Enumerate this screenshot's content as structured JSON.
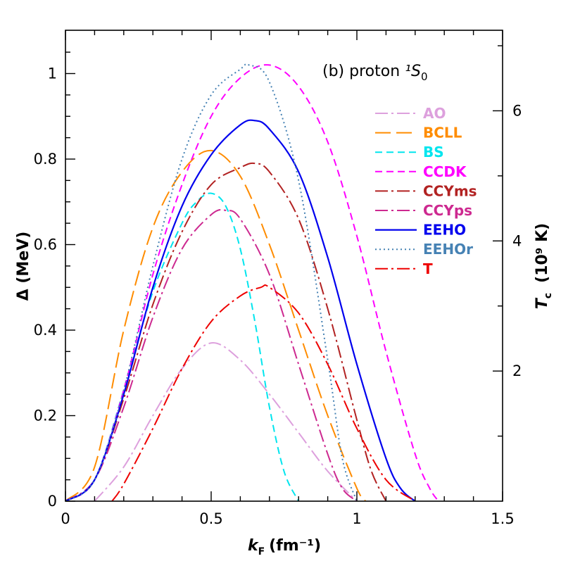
{
  "chart_data": {
    "type": "line",
    "panel_label": "(b) proton ",
    "panel_state": "¹S",
    "panel_state_sub": "0",
    "xlabel": "k",
    "xlabel_sub": "F",
    "xlabel_unit": "(fm⁻¹)",
    "ylabel": "Δ (MeV)",
    "y2label": "T",
    "y2label_sub": "c",
    "y2label_unit": "(10⁹ K)",
    "xlim": [
      0,
      1.5
    ],
    "ylim": [
      0,
      1.0
    ],
    "xticks": [
      "0",
      "0.5",
      "1",
      "1.5"
    ],
    "yticks": [
      "0",
      "0.2",
      "0.4",
      "0.6",
      "0.8",
      "1"
    ],
    "y2ticks": [
      "2",
      "4",
      "6"
    ],
    "y2tick_values_MeV": [
      0.3043,
      0.6086,
      0.9129
    ],
    "legend_position": "top-right",
    "series": [
      {
        "name": "AO",
        "color": "#dda0dd",
        "dash": "dashdot",
        "x": [
          0.1,
          0.2,
          0.3,
          0.4,
          0.5,
          0.6,
          0.7,
          0.8,
          0.9,
          1.0
        ],
        "y": [
          0.0,
          0.08,
          0.2,
          0.31,
          0.37,
          0.33,
          0.25,
          0.16,
          0.07,
          0.0
        ]
      },
      {
        "name": "BCLL",
        "color": "#ff8c00",
        "dash": "longdash",
        "x": [
          0.0,
          0.1,
          0.2,
          0.3,
          0.4,
          0.5,
          0.6,
          0.7,
          0.8,
          0.9,
          1.0,
          1.03
        ],
        "y": [
          0.0,
          0.08,
          0.4,
          0.64,
          0.77,
          0.82,
          0.76,
          0.6,
          0.4,
          0.2,
          0.03,
          0.0
        ]
      },
      {
        "name": "BS",
        "color": "#00e5ee",
        "dash": "dashed",
        "x": [
          0.0,
          0.1,
          0.2,
          0.3,
          0.4,
          0.45,
          0.5,
          0.55,
          0.6,
          0.65,
          0.7,
          0.75,
          0.8
        ],
        "y": [
          0.0,
          0.05,
          0.26,
          0.49,
          0.65,
          0.7,
          0.72,
          0.69,
          0.59,
          0.42,
          0.22,
          0.07,
          0.0
        ]
      },
      {
        "name": "CCDK",
        "color": "#ff00ff",
        "dash": "dashed",
        "x": [
          0.0,
          0.1,
          0.2,
          0.3,
          0.4,
          0.5,
          0.6,
          0.7,
          0.8,
          0.9,
          1.0,
          1.1,
          1.2,
          1.25,
          1.28
        ],
        "y": [
          0.0,
          0.05,
          0.26,
          0.53,
          0.74,
          0.9,
          0.99,
          1.02,
          0.97,
          0.84,
          0.62,
          0.35,
          0.11,
          0.03,
          0.0
        ]
      },
      {
        "name": "CCYms",
        "color": "#b22222",
        "dash": "dashdot",
        "x": [
          0.0,
          0.1,
          0.2,
          0.3,
          0.4,
          0.5,
          0.6,
          0.65,
          0.7,
          0.8,
          0.9,
          1.0,
          1.05,
          1.1
        ],
        "y": [
          0.0,
          0.05,
          0.24,
          0.46,
          0.63,
          0.74,
          0.78,
          0.79,
          0.77,
          0.66,
          0.45,
          0.19,
          0.07,
          0.0
        ]
      },
      {
        "name": "CCYps",
        "color": "#cd2990",
        "dash": "dashdot",
        "x": [
          0.0,
          0.1,
          0.2,
          0.3,
          0.4,
          0.5,
          0.55,
          0.6,
          0.7,
          0.8,
          0.9,
          0.95,
          1.0
        ],
        "y": [
          0.0,
          0.05,
          0.22,
          0.43,
          0.59,
          0.67,
          0.68,
          0.66,
          0.53,
          0.32,
          0.11,
          0.03,
          0.0
        ]
      },
      {
        "name": "EEHO",
        "color": "#0000ee",
        "dash": "solid",
        "x": [
          0.0,
          0.1,
          0.2,
          0.3,
          0.4,
          0.5,
          0.6,
          0.65,
          0.7,
          0.8,
          0.9,
          1.0,
          1.1,
          1.15,
          1.2
        ],
        "y": [
          0.0,
          0.05,
          0.25,
          0.5,
          0.69,
          0.81,
          0.88,
          0.89,
          0.87,
          0.77,
          0.57,
          0.32,
          0.1,
          0.03,
          0.0
        ]
      },
      {
        "name": "EEHOr",
        "color": "#4682b4",
        "dash": "dotted",
        "x": [
          0.0,
          0.1,
          0.2,
          0.3,
          0.4,
          0.5,
          0.6,
          0.63,
          0.7,
          0.8,
          0.9,
          0.95,
          1.0
        ],
        "y": [
          0.0,
          0.05,
          0.26,
          0.55,
          0.8,
          0.95,
          1.01,
          1.02,
          0.98,
          0.75,
          0.33,
          0.1,
          0.0
        ]
      },
      {
        "name": "T",
        "color": "#ee0000",
        "dash": "dashdot",
        "x": [
          0.16,
          0.2,
          0.3,
          0.4,
          0.5,
          0.6,
          0.67,
          0.7,
          0.8,
          0.9,
          1.0,
          1.1,
          1.2
        ],
        "y": [
          0.0,
          0.04,
          0.17,
          0.31,
          0.42,
          0.48,
          0.5,
          0.5,
          0.44,
          0.32,
          0.17,
          0.05,
          0.0
        ]
      }
    ]
  }
}
